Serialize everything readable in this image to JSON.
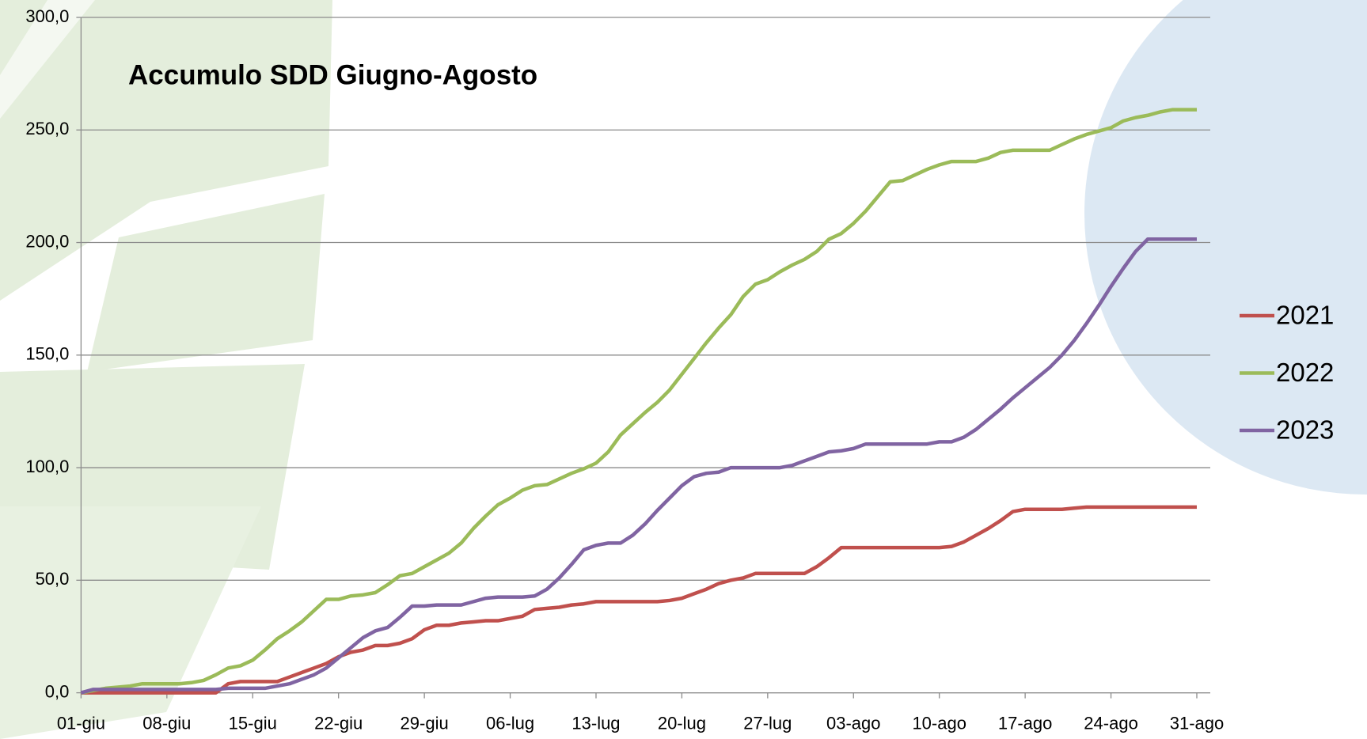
{
  "chart_data": {
    "type": "line",
    "title": "Accumulo SDD Giugno-Agosto",
    "categories": [
      "01-giu",
      null,
      null,
      null,
      null,
      null,
      null,
      "08-giu",
      null,
      null,
      null,
      null,
      null,
      null,
      "15-giu",
      null,
      null,
      null,
      null,
      null,
      null,
      "22-giu",
      null,
      null,
      null,
      null,
      null,
      null,
      "29-giu",
      null,
      null,
      null,
      null,
      null,
      null,
      "06-lug",
      null,
      null,
      null,
      null,
      null,
      null,
      "13-lug",
      null,
      null,
      null,
      null,
      null,
      null,
      "20-lug",
      null,
      null,
      null,
      null,
      null,
      null,
      "27-lug",
      null,
      null,
      null,
      null,
      null,
      null,
      "03-ago",
      null,
      null,
      null,
      null,
      null,
      null,
      "10-ago",
      null,
      null,
      null,
      null,
      null,
      null,
      "17-ago",
      null,
      null,
      null,
      null,
      null,
      null,
      "24-ago",
      null,
      null,
      null,
      null,
      null,
      null,
      "31-ago"
    ],
    "series": [
      {
        "name": "2021",
        "color": "#c0504d",
        "values": [
          0,
          0,
          0,
          0,
          0,
          0,
          0,
          0,
          0,
          0,
          0,
          0,
          4,
          5,
          5,
          5,
          5,
          7,
          9,
          11,
          13,
          16,
          18,
          19,
          21,
          21,
          22,
          24,
          28,
          30,
          30,
          31,
          31.5,
          32,
          32,
          33,
          34,
          37,
          37.5,
          38,
          39,
          39.5,
          40.5,
          40.5,
          40.5,
          40.5,
          40.5,
          40.5,
          41,
          42,
          44,
          46,
          48.5,
          50,
          51,
          53,
          53,
          53,
          53,
          53,
          56,
          60,
          64.5,
          64.5,
          64.5,
          64.5,
          64.5,
          64.5,
          64.5,
          64.5,
          64.5,
          65,
          67,
          70,
          73,
          76.5,
          80.5,
          81.5,
          81.5,
          81.5,
          81.5,
          82,
          82.5,
          82.5,
          82.5,
          82.5,
          82.5,
          82.5,
          82.5,
          82.5,
          82.5,
          82.5
        ]
      },
      {
        "name": "2022",
        "color": "#9bbb59",
        "values": [
          0,
          1,
          2,
          2.5,
          3,
          4,
          4,
          4,
          4,
          4.5,
          5.5,
          8,
          11,
          12,
          14.5,
          19,
          24,
          27.5,
          31.5,
          36.5,
          41.5,
          41.5,
          43,
          43.5,
          44.5,
          48,
          52,
          53,
          56,
          59,
          62,
          66.5,
          73,
          78.5,
          83.5,
          86.5,
          90,
          92,
          92.5,
          95,
          97.5,
          99.5,
          102,
          107,
          114.5,
          119.5,
          124.5,
          129,
          134.5,
          141.5,
          148.5,
          155.5,
          162,
          168,
          176,
          181.5,
          183.5,
          187,
          190,
          192.5,
          196,
          201.5,
          204,
          208.5,
          214,
          220.5,
          227,
          227.5,
          230,
          232.5,
          234.5,
          236,
          236,
          236,
          237.5,
          240,
          241,
          241,
          241,
          241,
          243.5,
          246,
          248,
          249.5,
          251,
          254,
          255.5,
          256.5,
          258,
          259,
          259,
          259
        ]
      },
      {
        "name": "2023",
        "color": "#8064a2",
        "values": [
          0,
          1.5,
          1.5,
          1.5,
          1.5,
          1.5,
          1.5,
          1.5,
          1.5,
          1.5,
          1.5,
          1.5,
          2,
          2,
          2,
          2,
          3,
          4,
          6,
          8,
          11,
          15.5,
          20,
          24.5,
          27.5,
          29,
          33.5,
          38.5,
          38.5,
          39,
          39,
          39,
          40.5,
          42,
          42.5,
          42.5,
          42.5,
          43,
          46,
          51,
          57,
          63.5,
          65.5,
          66.5,
          66.5,
          70,
          75,
          81,
          86.5,
          92,
          96,
          97.5,
          98,
          100,
          100,
          100,
          100,
          100,
          101,
          103,
          105,
          107,
          107.5,
          108.5,
          110.5,
          110.5,
          110.5,
          110.5,
          110.5,
          110.5,
          111.5,
          111.5,
          113.5,
          117,
          121.5,
          126,
          131,
          135.5,
          140,
          144.5,
          150,
          156.5,
          164,
          172,
          180.5,
          188.5,
          196,
          201.5,
          201.5,
          201.5,
          201.5,
          201.5
        ]
      }
    ],
    "ylim": [
      0,
      300
    ],
    "yticks": [
      {
        "value": 0,
        "label": "0,0"
      },
      {
        "value": 50,
        "label": "50,0"
      },
      {
        "value": 100,
        "label": "100,0"
      },
      {
        "value": 150,
        "label": "150,0"
      },
      {
        "value": 200,
        "label": "200,0"
      },
      {
        "value": 250,
        "label": "250,0"
      },
      {
        "value": 300,
        "label": "300,0"
      }
    ],
    "grid": true,
    "legend": "right"
  }
}
